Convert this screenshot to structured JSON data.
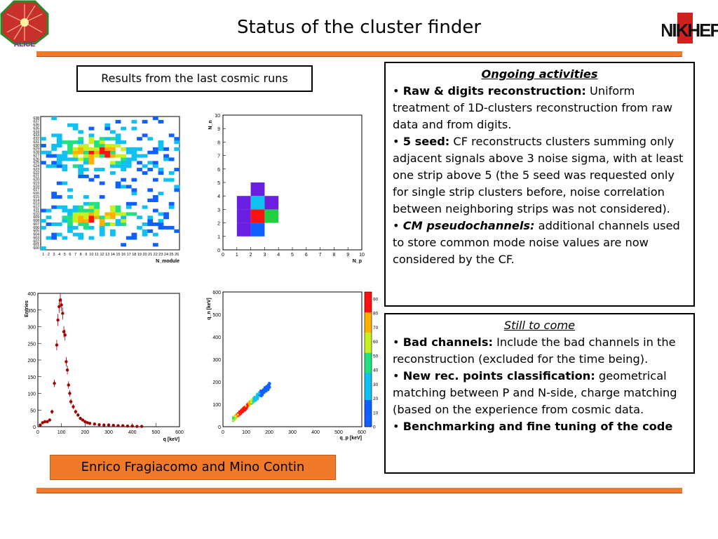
{
  "slide": {
    "title": "Status of the cluster finder",
    "caption": "Results from the last cosmic runs",
    "authors": "Enrico Fragiacomo and Mino Contin",
    "logo_left_text": "ALICE",
    "logo_right_text": "NIKHEF"
  },
  "ongoing": {
    "heading": "Ongoing activities",
    "items": [
      {
        "bullet": "•",
        "label": "Raw & digits reconstruction:",
        "text": " Uniform treatment of 1D-clusters reconstruction from raw data and from digits."
      },
      {
        "bullet": "•",
        "label": "5 seed:",
        "text": " CF reconstructs clusters summing only adjacent signals above 3 noise sigma, with at least one strip above 5 (the 5 seed was requested only for single strip clusters before, noise correlation between neighboring strips was not considered)."
      },
      {
        "bullet": "•",
        "label": "CM pseudochannels:",
        "text": " additional channels used to store common mode noise values are now considered by the CF."
      }
    ]
  },
  "still": {
    "heading": "Still to come",
    "items": [
      {
        "bullet": "•",
        "label": "Bad channels:",
        "text": " Include the bad channels in the reconstruction (excluded for the time being)."
      },
      {
        "bullet": "•",
        "label": "New rec. points classification:",
        "text": " geometrical matching between P and N-side, charge matching (based on the experience from cosmic data."
      },
      {
        "bullet": "•",
        "label": "Benchmarking and fine tuning of the code",
        "text": ""
      }
    ]
  },
  "chart_data": [
    {
      "type": "heatmap",
      "xlabel": "N_module",
      "x_ticks": [
        "1",
        "2",
        "3",
        "4",
        "5",
        "6",
        "7",
        "8",
        "9",
        "10",
        "11",
        "12",
        "13",
        "14",
        "15",
        "16",
        "17",
        "18",
        "19",
        "20",
        "21",
        "22",
        "23",
        "24",
        "25",
        "26"
      ],
      "y_ticks": [
        "600",
        "601",
        "602",
        "603",
        "604",
        "605",
        "606",
        "607",
        "608",
        "609",
        "610",
        "611",
        "612",
        "613",
        "614",
        "615",
        "616",
        "617",
        "618",
        "619",
        "620",
        "621",
        "622",
        "623",
        "624",
        "625",
        "626",
        "627",
        "628",
        "629",
        "630",
        "631",
        "632",
        "633",
        "634",
        "635",
        "636",
        "637",
        "638"
      ]
    },
    {
      "type": "heatmap",
      "xlabel": "N_p",
      "ylabel": "N_n",
      "xlim": [
        0,
        10
      ],
      "ylim": [
        0,
        10
      ],
      "cells": [
        {
          "x": 1,
          "y": 1,
          "level": 1
        },
        {
          "x": 2,
          "y": 1,
          "level": 2
        },
        {
          "x": 1,
          "y": 2,
          "level": 1
        },
        {
          "x": 2,
          "y": 2,
          "level": 5
        },
        {
          "x": 3,
          "y": 2,
          "level": 4
        },
        {
          "x": 1,
          "y": 3,
          "level": 1
        },
        {
          "x": 2,
          "y": 3,
          "level": 3
        },
        {
          "x": 3,
          "y": 3,
          "level": 1
        },
        {
          "x": 2,
          "y": 4,
          "level": 1
        }
      ]
    },
    {
      "type": "scatter",
      "xlabel": "q [keV]",
      "ylabel": "Entries",
      "xlim": [
        0,
        600
      ],
      "ylim": [
        0,
        400
      ],
      "x_ticks": [
        "0",
        "100",
        "200",
        "300",
        "400",
        "500",
        "600"
      ],
      "y_ticks": [
        "0",
        "50",
        "100",
        "150",
        "200",
        "250",
        "300",
        "350",
        "400"
      ],
      "points": [
        [
          10,
          5
        ],
        [
          20,
          12
        ],
        [
          30,
          15
        ],
        [
          40,
          15
        ],
        [
          50,
          20
        ],
        [
          60,
          45
        ],
        [
          70,
          130
        ],
        [
          80,
          245
        ],
        [
          85,
          320
        ],
        [
          90,
          360
        ],
        [
          95,
          380
        ],
        [
          100,
          365
        ],
        [
          105,
          340
        ],
        [
          110,
          285
        ],
        [
          115,
          275
        ],
        [
          120,
          195
        ],
        [
          125,
          170
        ],
        [
          130,
          125
        ],
        [
          135,
          100
        ],
        [
          140,
          75
        ],
        [
          150,
          60
        ],
        [
          160,
          45
        ],
        [
          170,
          35
        ],
        [
          180,
          25
        ],
        [
          190,
          20
        ],
        [
          200,
          15
        ],
        [
          210,
          12
        ],
        [
          220,
          10
        ],
        [
          240,
          8
        ],
        [
          260,
          6
        ],
        [
          280,
          5
        ],
        [
          300,
          5
        ],
        [
          320,
          4
        ],
        [
          340,
          3
        ],
        [
          360,
          3
        ],
        [
          380,
          2
        ],
        [
          400,
          2
        ],
        [
          420,
          1
        ],
        [
          440,
          1
        ]
      ]
    },
    {
      "type": "heatmap",
      "xlabel": "q_p [keV]",
      "ylabel": "q_n [keV]",
      "xlim": [
        0,
        600
      ],
      "ylim": [
        0,
        600
      ],
      "x_ticks": [
        "0",
        "100",
        "200",
        "300",
        "400",
        "500",
        "600"
      ],
      "y_ticks": [
        "0",
        "100",
        "200",
        "300",
        "400",
        "500",
        "600"
      ],
      "colorbar_ticks": [
        "0",
        "10",
        "20",
        "30",
        "40",
        "50",
        "60",
        "70",
        "80",
        "90"
      ]
    }
  ]
}
